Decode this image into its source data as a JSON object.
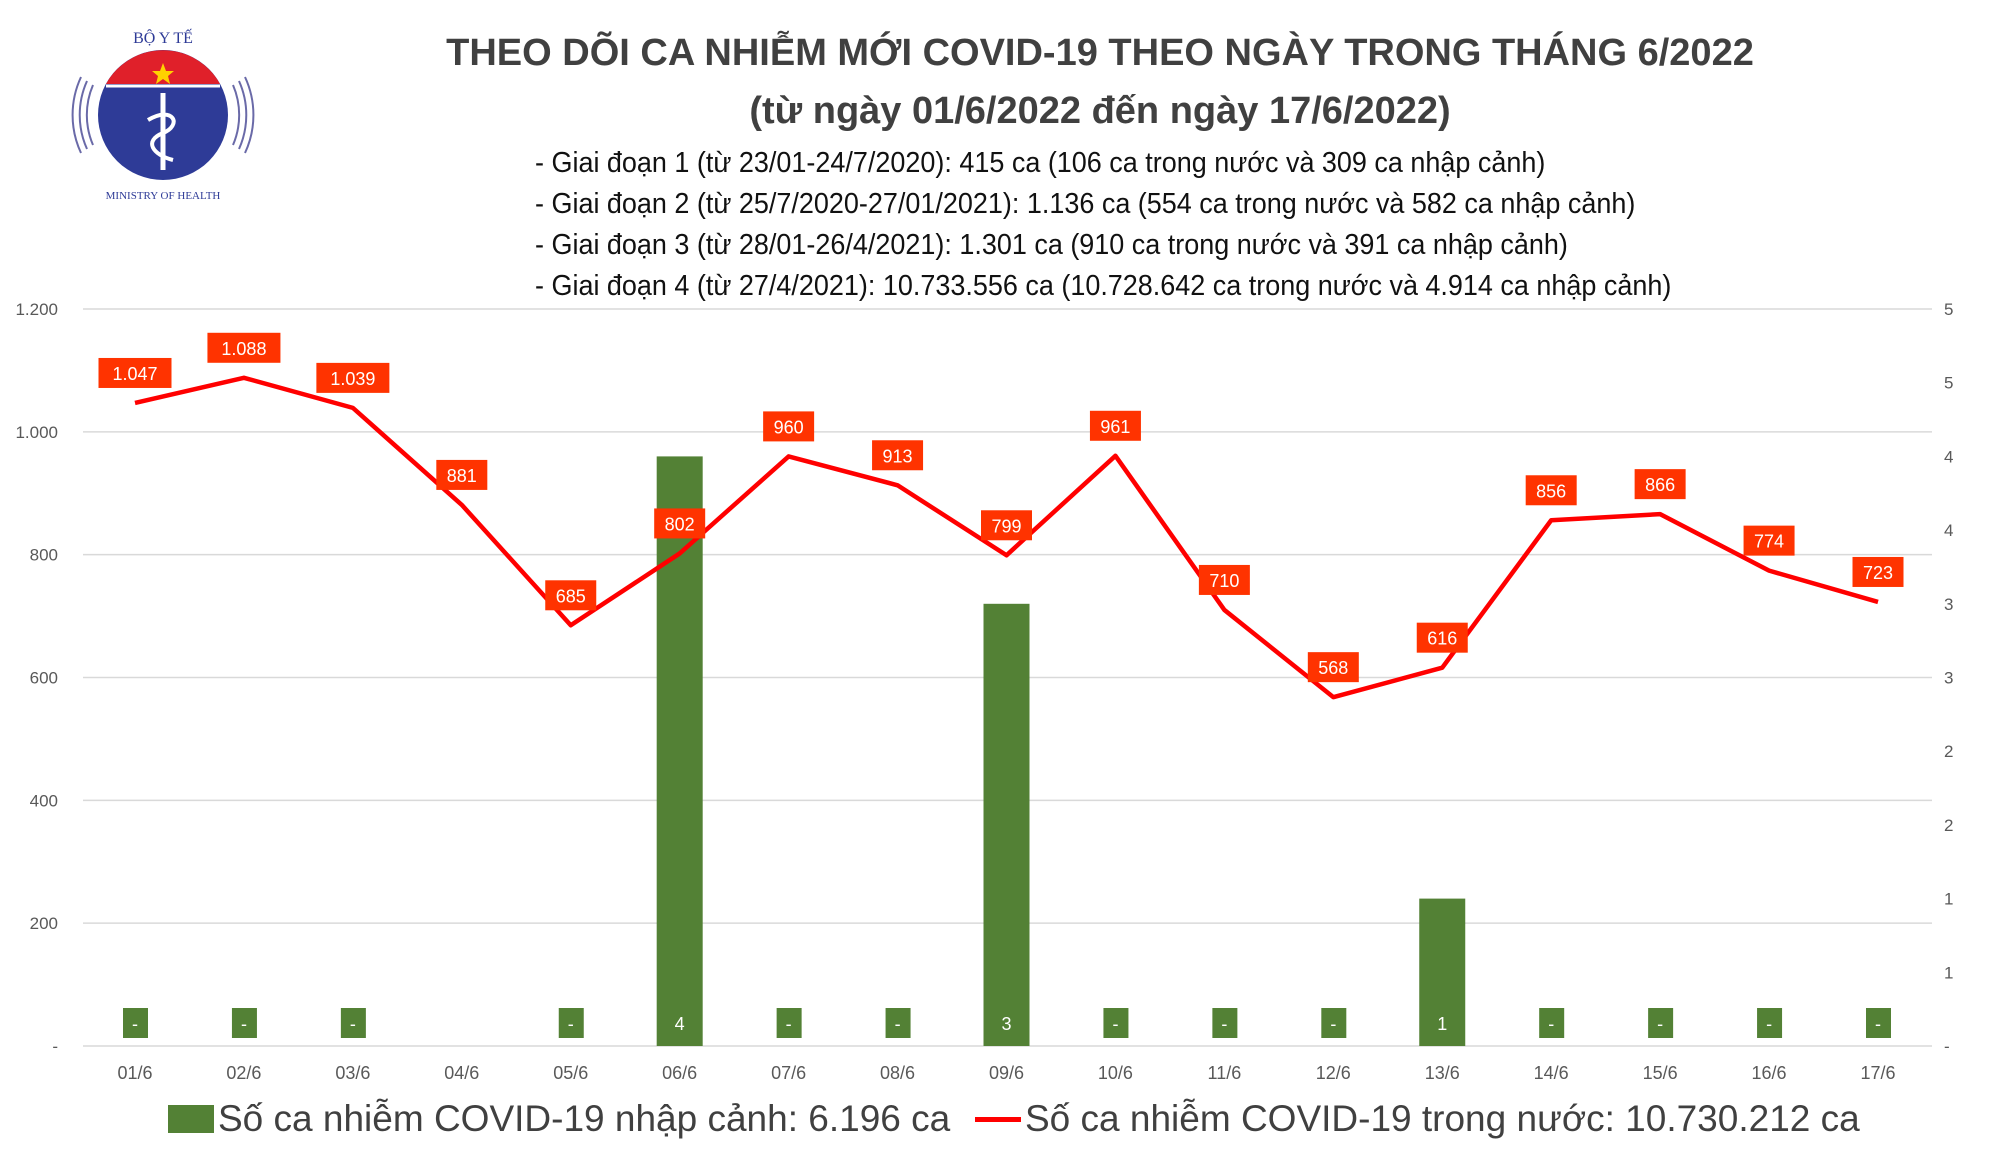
{
  "logo": {
    "text_top": "BỘ Y TẾ",
    "text_bottom": "MINISTRY OF HEALTH"
  },
  "title": "THEO DÕI CA NHIỄM MỚI COVID-19 THEO NGÀY TRONG THÁNG 6/2022",
  "subtitle": "(từ ngày 01/6/2022 đến ngày 17/6/2022)",
  "phases": [
    "- Giai đoạn 1 (từ 23/01-24/7/2020): 415 ca (106 ca trong nước và 309 ca nhập cảnh)",
    "- Giai đoạn 2 (từ 25/7/2020-27/01/2021): 1.136 ca (554 ca trong nước và 582 ca nhập cảnh)",
    "- Giai đoạn 3 (từ 28/01-26/4/2021): 1.301 ca (910 ca trong nước và 391 ca nhập cảnh)",
    "- Giai đoạn 4 (từ 27/4/2021): 10.733.556 ca (10.728.642 ca trong nước và 4.914 ca nhập cảnh)"
  ],
  "chart_data": {
    "type": "bar+line",
    "categories": [
      "01/6",
      "02/6",
      "03/6",
      "04/6",
      "05/6",
      "06/6",
      "07/6",
      "08/6",
      "09/6",
      "10/6",
      "11/6",
      "12/6",
      "13/6",
      "14/6",
      "15/6",
      "16/6",
      "17/6"
    ],
    "series": [
      {
        "name": "Số ca nhiễm COVID-19 nhập cảnh: 6.196 ca",
        "type": "bar",
        "axis": "right",
        "color": "#538135",
        "values": [
          0,
          0,
          0,
          0,
          0,
          4,
          0,
          0,
          3,
          0,
          0,
          0,
          1,
          0,
          0,
          0,
          0
        ],
        "labels": [
          "-",
          "-",
          "-",
          "",
          "-",
          "4",
          "-",
          "-",
          "3",
          "-",
          "-",
          "-",
          "1",
          "-",
          "-",
          "-",
          "-"
        ]
      },
      {
        "name": "Số ca nhiễm COVID-19 trong nước: 10.730.212 ca",
        "type": "line",
        "axis": "left",
        "color": "#ff0000",
        "values": [
          1047,
          1088,
          1039,
          881,
          685,
          802,
          960,
          913,
          799,
          961,
          710,
          568,
          616,
          856,
          866,
          774,
          723
        ],
        "labels": [
          "1.047",
          "1.088",
          "1.039",
          "881",
          "685",
          "802",
          "960",
          "913",
          "799",
          "961",
          "710",
          "568",
          "616",
          "856",
          "866",
          "774",
          "723"
        ],
        "label_bg": "#ff3300"
      }
    ],
    "left_axis": {
      "ylim": [
        0,
        1200
      ],
      "ticks": [
        0,
        200,
        400,
        600,
        800,
        1000,
        1200
      ],
      "tick_labels": [
        "-",
        "200",
        "400",
        "600",
        "800",
        "1.000",
        "1.200"
      ]
    },
    "right_axis": {
      "ylim": [
        0,
        5
      ],
      "ticks": [
        0,
        0.5,
        1,
        1.5,
        2,
        2.5,
        3,
        3.5,
        4,
        4.5,
        5
      ],
      "tick_labels": [
        "-",
        "1",
        "1",
        "2",
        "2",
        "3",
        "3",
        "4",
        "4",
        "5",
        "5"
      ]
    },
    "grid": true,
    "legend": "bottom"
  }
}
